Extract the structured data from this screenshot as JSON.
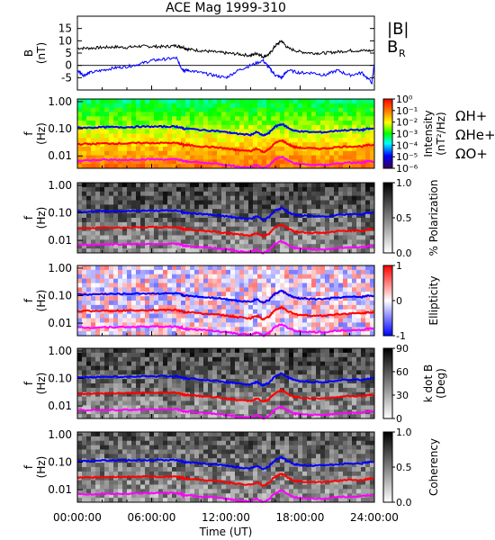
{
  "chart_data": [
    {
      "type": "line",
      "title": "ACE Mag 1999-310",
      "ylabel": "B (nT)",
      "ylim": [
        -10,
        20
      ],
      "yticks": [
        "-5",
        "0",
        "5",
        "10",
        "15"
      ],
      "xlim_hours": [
        0,
        24
      ],
      "legend": [
        "|B|",
        "B",
        "R"
      ],
      "series": [
        {
          "name": "|B|",
          "color": "#000000",
          "x": [
            0,
            1,
            2,
            3,
            4,
            5,
            6,
            7,
            8,
            8.5,
            9,
            10,
            11,
            12,
            13,
            14,
            14.5,
            15,
            15.5,
            16,
            16.5,
            17,
            18,
            19,
            20,
            21,
            22,
            23,
            24
          ],
          "y": [
            7,
            7,
            7.3,
            7.5,
            7.3,
            7.8,
            7.7,
            7.6,
            8,
            7.5,
            6.5,
            6,
            5.5,
            5,
            4.6,
            4,
            5,
            3.5,
            4.5,
            8,
            10,
            7,
            5.5,
            5,
            5,
            5.5,
            6,
            6,
            6
          ]
        },
        {
          "name": "BR",
          "color": "#0000ff",
          "x": [
            0,
            0.5,
            1,
            2,
            3,
            4,
            5,
            6,
            7,
            8,
            8.4,
            8.6,
            9,
            10,
            11,
            12,
            13,
            14,
            15,
            15.5,
            16,
            16.5,
            17,
            18,
            19,
            20,
            21,
            22,
            23,
            23.8,
            24
          ],
          "y": [
            -2,
            -4,
            -3,
            -2,
            -1,
            -0.5,
            0.5,
            2,
            2.5,
            3,
            -1,
            -2,
            -2,
            -3,
            -4,
            -5,
            -2,
            0,
            2,
            -1,
            -4,
            -5,
            -2,
            -3,
            -3,
            -4,
            -2,
            -4,
            -3,
            -7,
            1
          ]
        }
      ]
    },
    {
      "type": "heatmap",
      "title": "",
      "xlabel": "",
      "ylabel": "f (Hz)",
      "yticks": [
        "1.00",
        "0.10",
        "0.01"
      ],
      "colorbar_label": "Intensity (nT²/Hz)",
      "colorbar_ticks": [
        "10⁰",
        "10⁻¹",
        "10⁻²",
        "10⁻³",
        "10⁻⁴",
        "10⁻⁵",
        "10⁻⁶"
      ],
      "colorscale": "rainbow",
      "legend": [
        {
          "label": "ΩH+",
          "color": "#0000ff"
        },
        {
          "label": "ΩHe+",
          "color": "#ff0000"
        },
        {
          "label": "ΩO+",
          "color": "#ff00ff"
        }
      ]
    },
    {
      "type": "heatmap",
      "title": "",
      "ylabel": "f (Hz)",
      "yticks": [
        "1.00",
        "0.10",
        "0.01"
      ],
      "colorbar_label": "% Polarization",
      "colorbar_ticks": [
        "1.0",
        "0.5",
        "0.0"
      ],
      "colorscale": "gray"
    },
    {
      "type": "heatmap",
      "title": "",
      "ylabel": "f (Hz)",
      "yticks": [
        "1.00",
        "0.10",
        "0.01"
      ],
      "colorbar_label": "Ellipticity",
      "colorbar_ticks": [
        "1",
        "0",
        "-1"
      ],
      "colorscale": "bwr"
    },
    {
      "type": "heatmap",
      "title": "",
      "ylabel": "f (Hz)",
      "yticks": [
        "1.00",
        "0.10",
        "0.01"
      ],
      "colorbar_label": "k dot B (Deg)",
      "colorbar_ticks": [
        "90",
        "60",
        "30",
        "0"
      ],
      "colorscale": "gray"
    },
    {
      "type": "heatmap",
      "title": "",
      "ylabel": "f (Hz)",
      "yticks": [
        "1.00",
        "0.10",
        "0.01"
      ],
      "colorbar_label": "Coherency",
      "colorbar_ticks": [
        "1.0",
        "0.5",
        "0.0"
      ],
      "colorscale": "gray",
      "xlabel": "Time (UT)",
      "xticks": [
        "00:00:00",
        "06:00:00",
        "12:00:00",
        "18:00:00",
        "24:00:00"
      ]
    }
  ],
  "gyrofrequency_overlay": {
    "hours": [
      0,
      1,
      2,
      3,
      4,
      5,
      6,
      7,
      8,
      8.4,
      8.6,
      9,
      10,
      11,
      12,
      12.5,
      13,
      14,
      14.5,
      15,
      15.5,
      16,
      16.5,
      17,
      17.5,
      18,
      19,
      20,
      21,
      22,
      23,
      23.5,
      24
    ],
    "H_plus_hz": [
      0.11,
      0.11,
      0.115,
      0.115,
      0.115,
      0.12,
      0.12,
      0.12,
      0.12,
      0.11,
      0.1,
      0.1,
      0.09,
      0.085,
      0.075,
      0.07,
      0.065,
      0.06,
      0.075,
      0.055,
      0.07,
      0.12,
      0.15,
      0.11,
      0.085,
      0.08,
      0.075,
      0.075,
      0.085,
      0.09,
      0.09,
      0.1,
      0.1
    ]
  }
}
